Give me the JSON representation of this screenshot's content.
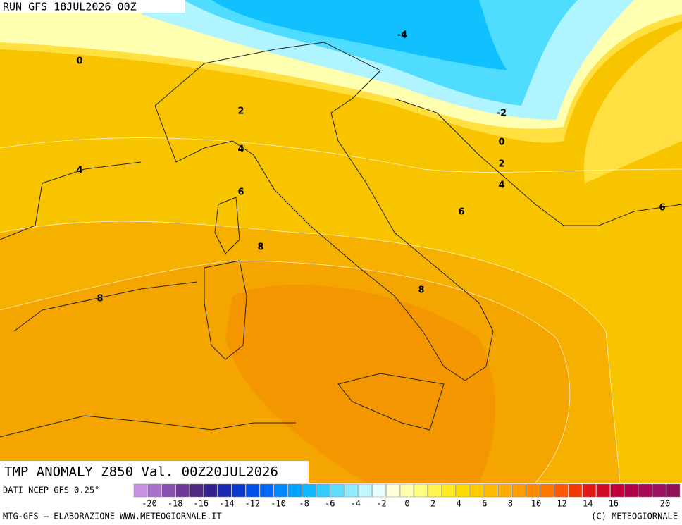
{
  "header": {
    "run": "RUN GFS 18JUL2026 00Z"
  },
  "map": {
    "title": "TMP ANOMALY Z850 Val. 00Z20JUL2026",
    "source": "DATI NCEP GFS 0.25°",
    "contour_labels": [
      -4,
      0,
      -2,
      0,
      2,
      2,
      4,
      4,
      4,
      6,
      6,
      6,
      8,
      8,
      8
    ]
  },
  "colorbar": {
    "ticks": [
      -20,
      -18,
      -16,
      -14,
      -12,
      -10,
      -8,
      -6,
      -4,
      -2,
      0,
      2,
      4,
      6,
      8,
      10,
      12,
      14,
      16,
      20
    ],
    "colors": [
      "#c890e0",
      "#a870c8",
      "#8850b0",
      "#703898",
      "#502880",
      "#302090",
      "#1828b0",
      "#0838d0",
      "#0050e8",
      "#0068f8",
      "#0088ff",
      "#00a0ff",
      "#10b8ff",
      "#30ccff",
      "#60dcff",
      "#90ecff",
      "#c0f8ff",
      "#e8ffff",
      "#ffffd8",
      "#ffffb0",
      "#ffff80",
      "#fff650",
      "#ffea20",
      "#ffdc00",
      "#ffcc00",
      "#ffbc00",
      "#ffac00",
      "#ff9c00",
      "#ff8c00",
      "#ff7800",
      "#ff5800",
      "#f03800",
      "#e01818",
      "#d00828",
      "#c00038",
      "#b00048",
      "#a80858",
      "#a01060",
      "#901058"
    ]
  },
  "footer": {
    "left": "MTG-GFS — ELABORAZIONE WWW.METEOGIORNALE.IT",
    "right": "(C) METEOGIORNALE"
  }
}
